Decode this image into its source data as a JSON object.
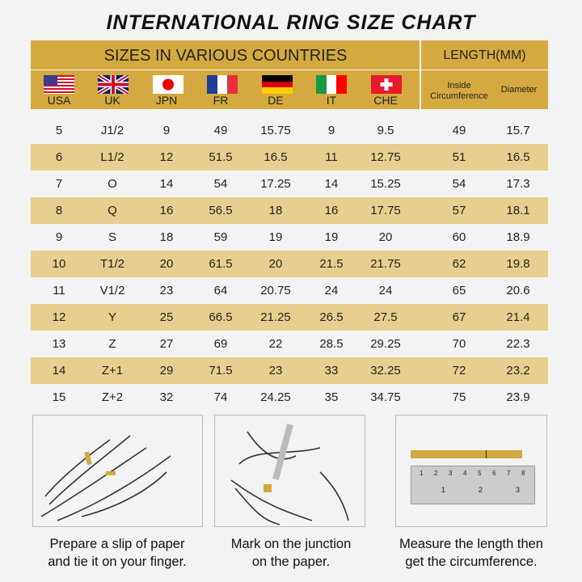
{
  "title": "INTERNATIONAL RING SIZE CHART",
  "header": {
    "countries_label": "SIZES IN VARIOUS COUNTRIES",
    "length_label": "LENGTH(MM)",
    "inside_label_1": "Inside",
    "inside_label_2": "Circumference",
    "diameter_label": "Diameter"
  },
  "countries": [
    {
      "code": "USA",
      "flag": "us-flag"
    },
    {
      "code": "UK",
      "flag": "uk-flag"
    },
    {
      "code": "JPN",
      "flag": "japan-flag"
    },
    {
      "code": "FR",
      "flag": "france-flag"
    },
    {
      "code": "DE",
      "flag": "germany-flag"
    },
    {
      "code": "IT",
      "flag": "italy-flag"
    },
    {
      "code": "CHE",
      "flag": "switzerland-flag"
    }
  ],
  "rows": [
    [
      "5",
      "J1/2",
      "9",
      "49",
      "15.75",
      "9",
      "9.5",
      "49",
      "15.7"
    ],
    [
      "6",
      "L1/2",
      "12",
      "51.5",
      "16.5",
      "11",
      "12.75",
      "51",
      "16.5"
    ],
    [
      "7",
      "O",
      "14",
      "54",
      "17.25",
      "14",
      "15.25",
      "54",
      "17.3"
    ],
    [
      "8",
      "Q",
      "16",
      "56.5",
      "18",
      "16",
      "17.75",
      "57",
      "18.1"
    ],
    [
      "9",
      "S",
      "18",
      "59",
      "19",
      "19",
      "20",
      "60",
      "18.9"
    ],
    [
      "10",
      "T1/2",
      "20",
      "61.5",
      "20",
      "21.5",
      "21.75",
      "62",
      "19.8"
    ],
    [
      "11",
      "V1/2",
      "23",
      "64",
      "20.75",
      "24",
      "24",
      "65",
      "20.6"
    ],
    [
      "12",
      "Y",
      "25",
      "66.5",
      "21.25",
      "26.5",
      "27.5",
      "67",
      "21.4"
    ],
    [
      "13",
      "Z",
      "27",
      "69",
      "22",
      "28.5",
      "29.25",
      "70",
      "22.3"
    ],
    [
      "14",
      "Z+1",
      "29",
      "71.5",
      "23",
      "33",
      "32.25",
      "72",
      "23.2"
    ],
    [
      "15",
      "Z+2",
      "32",
      "74",
      "24.25",
      "35",
      "34.75",
      "75",
      "23.9"
    ]
  ],
  "steps": [
    {
      "line1": "Prepare a slip of paper",
      "line2": "and tie it on your finger."
    },
    {
      "line1": "Mark on the junction",
      "line2": "on the paper."
    },
    {
      "line1": "Measure the length then",
      "line2": "get the circumference."
    }
  ],
  "ruler": {
    "cm_ticks": [
      "1",
      "2",
      "3",
      "4",
      "5",
      "6",
      "7",
      "8"
    ],
    "inch_ticks": [
      "1",
      "2",
      "3"
    ]
  },
  "colors": {
    "header": "#d4a93f",
    "alt_row": "#e8cf8f",
    "background": "#f3f3f3"
  }
}
